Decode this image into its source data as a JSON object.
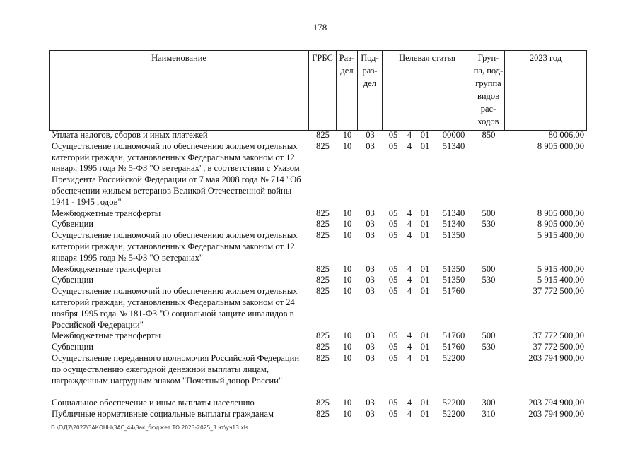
{
  "page_number": "178",
  "header": {
    "name": "Наименование",
    "grbs": "ГРБС",
    "razdel": "Раз-\nдел",
    "podrazdel": "Под-\nраз-\nдел",
    "target": "Целевая статья",
    "group": "Груп-\nпа, под-\nгруппа\nвидов\nрас-\nходов",
    "year": "2023 год"
  },
  "rows": [
    {
      "name": "Уплата налогов, сборов и иных платежей",
      "grbs": "825",
      "rz": "10",
      "pr": "03",
      "t": [
        "05",
        "4",
        "01",
        "00000"
      ],
      "gr": "850",
      "amt": "80 006,00"
    },
    {
      "name": "Осуществление полномочий по обеспечению жильем отдельных категорий граждан, установленных Федеральным законом от 12 января 1995 года № 5-ФЗ \"О ветеранах\", в соответствии с Указом Президента Российской Федерации от 7 мая 2008 года № 714 \"Об обеспечении жильем ветеранов Великой Отечественной войны 1941 - 1945 годов\"",
      "grbs": "825",
      "rz": "10",
      "pr": "03",
      "t": [
        "05",
        "4",
        "01",
        "51340"
      ],
      "gr": "",
      "amt": "8 905 000,00"
    },
    {
      "name": "Межбюджетные трансферты",
      "grbs": "825",
      "rz": "10",
      "pr": "03",
      "t": [
        "05",
        "4",
        "01",
        "51340"
      ],
      "gr": "500",
      "amt": "8 905 000,00"
    },
    {
      "name": "Субвенции",
      "grbs": "825",
      "rz": "10",
      "pr": "03",
      "t": [
        "05",
        "4",
        "01",
        "51340"
      ],
      "gr": "530",
      "amt": "8 905 000,00"
    },
    {
      "name": "Осуществление полномочий по обеспечению жильем отдельных категорий граждан, установленных Федеральным законом от 12 января 1995 года № 5-ФЗ \"О ветеранах\"",
      "grbs": "825",
      "rz": "10",
      "pr": "03",
      "t": [
        "05",
        "4",
        "01",
        "51350"
      ],
      "gr": "",
      "amt": "5 915 400,00"
    },
    {
      "name": "Межбюджетные трансферты",
      "grbs": "825",
      "rz": "10",
      "pr": "03",
      "t": [
        "05",
        "4",
        "01",
        "51350"
      ],
      "gr": "500",
      "amt": "5 915 400,00"
    },
    {
      "name": "Субвенции",
      "grbs": "825",
      "rz": "10",
      "pr": "03",
      "t": [
        "05",
        "4",
        "01",
        "51350"
      ],
      "gr": "530",
      "amt": "5 915 400,00"
    },
    {
      "name": "Осуществление полномочий по обеспечению жильем отдельных категорий граждан, установленных Федеральным законом от 24 ноября 1995 года № 181-ФЗ \"О социальной защите инвалидов в Российской Федерации\"",
      "grbs": "825",
      "rz": "10",
      "pr": "03",
      "t": [
        "05",
        "4",
        "01",
        "51760"
      ],
      "gr": "",
      "amt": "37 772 500,00"
    },
    {
      "name": "Межбюджетные трансферты",
      "grbs": "825",
      "rz": "10",
      "pr": "03",
      "t": [
        "05",
        "4",
        "01",
        "51760"
      ],
      "gr": "500",
      "amt": "37 772 500,00"
    },
    {
      "name": "Субвенции",
      "grbs": "825",
      "rz": "10",
      "pr": "03",
      "t": [
        "05",
        "4",
        "01",
        "51760"
      ],
      "gr": "530",
      "amt": "37 772 500,00"
    },
    {
      "name": "Осуществление переданного полномочия Российской Федерации по осуществлению ежегодной денежной выплаты лицам, награжденным нагрудным знаком \"Почетный донор России\"",
      "grbs": "825",
      "rz": "10",
      "pr": "03",
      "t": [
        "05",
        "4",
        "01",
        "52200"
      ],
      "gr": "",
      "amt": "203 794 900,00"
    },
    {
      "name": "Социальное обеспечение и иные выплаты населению",
      "grbs": "825",
      "rz": "10",
      "pr": "03",
      "t": [
        "05",
        "4",
        "01",
        "52200"
      ],
      "gr": "300",
      "amt": "203 794 900,00"
    },
    {
      "name": "Публичные нормативные социальные выплаты гражданам",
      "grbs": "825",
      "rz": "10",
      "pr": "03",
      "t": [
        "05",
        "4",
        "01",
        "52200"
      ],
      "gr": "310",
      "amt": "203 794 900,00"
    }
  ],
  "footer_path": "D:\\Г\\Д7\\2022\\ЗАКОНЫ\\ЗАС_44\\Зак_бюджет ТО 2023-2025_3 чт\\уч13.xls"
}
